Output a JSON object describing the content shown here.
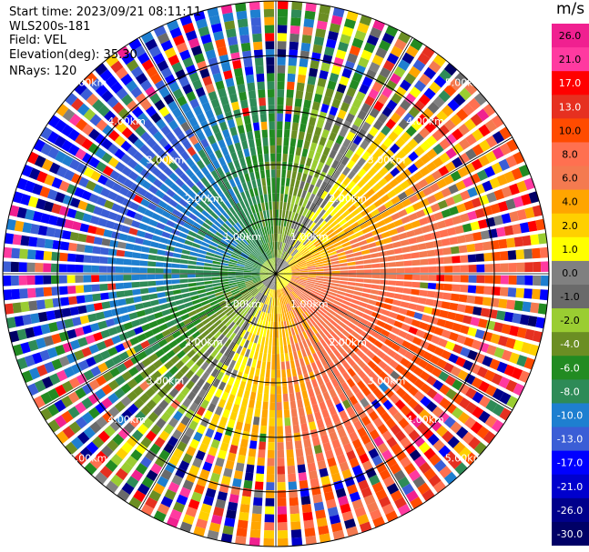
{
  "info": {
    "start_time": "Start time: 2023/09/21 08:11:11",
    "station": "WLS200s-181",
    "field": "Field: VEL",
    "elevation": "Elevation(deg): 35.30",
    "nrays": "NRays: 120"
  },
  "colorbar": {
    "title": "m/s",
    "ticks": [
      "26.0",
      "21.0",
      "17.0",
      "13.0",
      "10.0",
      "8.0",
      "6.0",
      "4.0",
      "2.0",
      "1.0",
      "0.0",
      "-1.0",
      "-2.0",
      "-4.0",
      "-6.0",
      "-8.0",
      "-10.0",
      "-13.0",
      "-17.0",
      "-21.0",
      "-26.0",
      "-30.0"
    ],
    "colors": [
      "#f02090",
      "#ff3aa0",
      "#ff0000",
      "#e63020",
      "#ff4b00",
      "#ff7050",
      "#f47a50",
      "#ffa500",
      "#ffd000",
      "#ffff00",
      "#808080",
      "#6a6a6a",
      "#9acd32",
      "#6b8e23",
      "#228b22",
      "#2e8b57",
      "#1e7fd0",
      "#3b5ed6",
      "#0000ff",
      "#0000cd",
      "#00008b",
      "#000066"
    ]
  },
  "chart_data": {
    "type": "heatmap",
    "subtype": "ppi_polar",
    "field": "VEL",
    "units": "m/s",
    "n_rays": 120,
    "max_range_km": 5.0,
    "range_rings_km": [
      1.0,
      2.0,
      3.0,
      4.0,
      5.0
    ],
    "ring_labels": [
      "1.00km",
      "2.00km",
      "3.00km",
      "4.00km",
      "5.00km"
    ],
    "spoke_angles_deg": [
      0,
      30,
      60,
      90,
      120,
      150,
      180,
      210,
      240,
      270,
      300,
      330
    ],
    "velocity_levels": [
      -30,
      -26,
      -21,
      -17,
      -13,
      -10,
      -8,
      -6,
      -4,
      -2,
      -1,
      0,
      1,
      2,
      4,
      6,
      8,
      10,
      13,
      17,
      21,
      26
    ],
    "pattern": {
      "negative_sector_azimuth_deg": 300,
      "positive_sector_azimuth_deg": 120,
      "near_field_limit_km": 3.5,
      "outer_noise_from_km": 3.6
    }
  }
}
